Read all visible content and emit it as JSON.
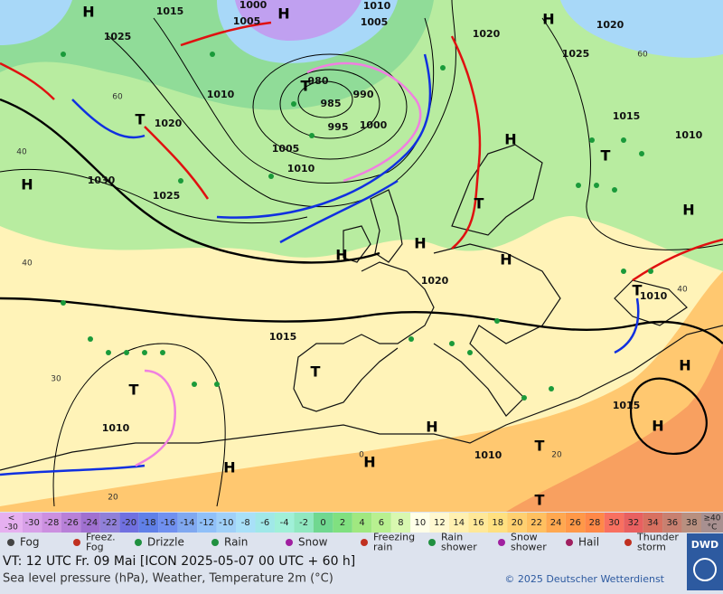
{
  "map": {
    "pressure_labels": [
      "1015",
      "1000",
      "1005",
      "1010",
      "1005",
      "1025",
      "1020",
      "1025",
      "1020",
      "1010",
      "980",
      "990",
      "985",
      "995",
      "1000",
      "1005",
      "1010",
      "1020",
      "1030",
      "1025",
      "1015",
      "1010",
      "1020",
      "1010",
      "1015",
      "1015",
      "1010",
      "1010"
    ],
    "temperature_labels": [
      "60",
      "40",
      "40",
      "60",
      "30",
      "40",
      "0",
      "20",
      "20"
    ],
    "centers": [
      "H",
      "H",
      "H",
      "H",
      "T",
      "T",
      "H",
      "T",
      "H",
      "H",
      "T",
      "H",
      "H",
      "T",
      "H",
      "T",
      "T",
      "H",
      "H",
      "H",
      "H",
      "T",
      "T"
    ]
  },
  "scale": [
    {
      "label": [
        "<",
        "-30"
      ],
      "color": "#e6b0f0"
    },
    {
      "label": [
        "-30"
      ],
      "color": "#d8a0e8"
    },
    {
      "label": [
        "-28"
      ],
      "color": "#cc90e0"
    },
    {
      "label": [
        "-26"
      ],
      "color": "#b880d8"
    },
    {
      "label": [
        "-24"
      ],
      "color": "#a070d0"
    },
    {
      "label": [
        "-22"
      ],
      "color": "#9080d8"
    },
    {
      "label": [
        "-20"
      ],
      "color": "#7070e0"
    },
    {
      "label": [
        "-18"
      ],
      "color": "#6080e8"
    },
    {
      "label": [
        "-16"
      ],
      "color": "#7090f0"
    },
    {
      "label": [
        "-14"
      ],
      "color": "#80a8f0"
    },
    {
      "label": [
        "-12"
      ],
      "color": "#90c0f8"
    },
    {
      "label": [
        "-10"
      ],
      "color": "#a0d0f8"
    },
    {
      "label": [
        "-8"
      ],
      "color": "#a8e0f8"
    },
    {
      "label": [
        "-6"
      ],
      "color": "#a0e8e8"
    },
    {
      "label": [
        "-4"
      ],
      "color": "#a0f0d8"
    },
    {
      "label": [
        "-2"
      ],
      "color": "#90e8c0"
    },
    {
      "label": [
        "0"
      ],
      "color": "#70d890"
    },
    {
      "label": [
        "2"
      ],
      "color": "#80e080"
    },
    {
      "label": [
        "4"
      ],
      "color": "#a0e880"
    },
    {
      "label": [
        "6"
      ],
      "color": "#b8f090"
    },
    {
      "label": [
        "8"
      ],
      "color": "#d8f8b0"
    },
    {
      "label": [
        "10"
      ],
      "color": "#ffffe8"
    },
    {
      "label": [
        "12"
      ],
      "color": "#fff8d0"
    },
    {
      "label": [
        "14"
      ],
      "color": "#fff0b0"
    },
    {
      "label": [
        "16"
      ],
      "color": "#ffe898"
    },
    {
      "label": [
        "18"
      ],
      "color": "#ffe080"
    },
    {
      "label": [
        "20"
      ],
      "color": "#ffd070"
    },
    {
      "label": [
        "22"
      ],
      "color": "#ffc060"
    },
    {
      "label": [
        "24"
      ],
      "color": "#ffa850"
    },
    {
      "label": [
        "26"
      ],
      "color": "#ff9848"
    },
    {
      "label": [
        "28"
      ],
      "color": "#ff8848"
    },
    {
      "label": [
        "30"
      ],
      "color": "#f87060"
    },
    {
      "label": [
        "32"
      ],
      "color": "#e86060"
    },
    {
      "label": [
        "34"
      ],
      "color": "#d87060"
    },
    {
      "label": [
        "36"
      ],
      "color": "#c88070"
    },
    {
      "label": [
        "38"
      ],
      "color": "#b89080"
    },
    {
      "label": [
        "≥40",
        "°C"
      ],
      "color": "#a89090"
    }
  ],
  "legend": [
    [
      "Fog"
    ],
    [
      "Freez.",
      "Fog"
    ],
    [
      "Drizzle"
    ],
    [
      "Rain"
    ],
    [
      "Snow"
    ],
    [
      "Freezing",
      "rain"
    ],
    [
      "Rain",
      "shower"
    ],
    [
      "Snow",
      "shower"
    ],
    [
      "Hail"
    ],
    [
      "Thunder",
      "storm"
    ]
  ],
  "footer": {
    "valid_time": "VT: 12 UTC Fr.  09 Mai [ICON 2025-05-07  00 UTC + 60 h]",
    "description": "Sea level pressure (hPa), Weather, Temperature 2m (°C)",
    "copyright": "© 2025 Deutscher Wetterdienst",
    "logo": "DWD"
  }
}
